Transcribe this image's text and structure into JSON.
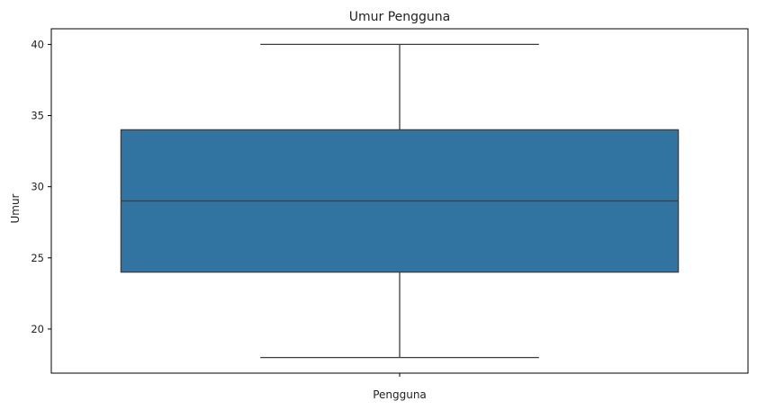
{
  "chart_data": {
    "type": "box",
    "title": "Umur Pengguna",
    "xlabel": "Pengguna",
    "ylabel": "Umur",
    "categories": [
      ""
    ],
    "boxes": [
      {
        "min": 18,
        "q1": 24,
        "median": 29,
        "q3": 34,
        "max": 40
      }
    ],
    "ylim": [
      16.9,
      41.1
    ],
    "yticks": [
      20,
      25,
      30,
      35,
      40
    ],
    "grid": false,
    "colors": {
      "box_fill": "#3274a1",
      "box_edge": "#3d3d3d",
      "axis": "#000000"
    }
  }
}
